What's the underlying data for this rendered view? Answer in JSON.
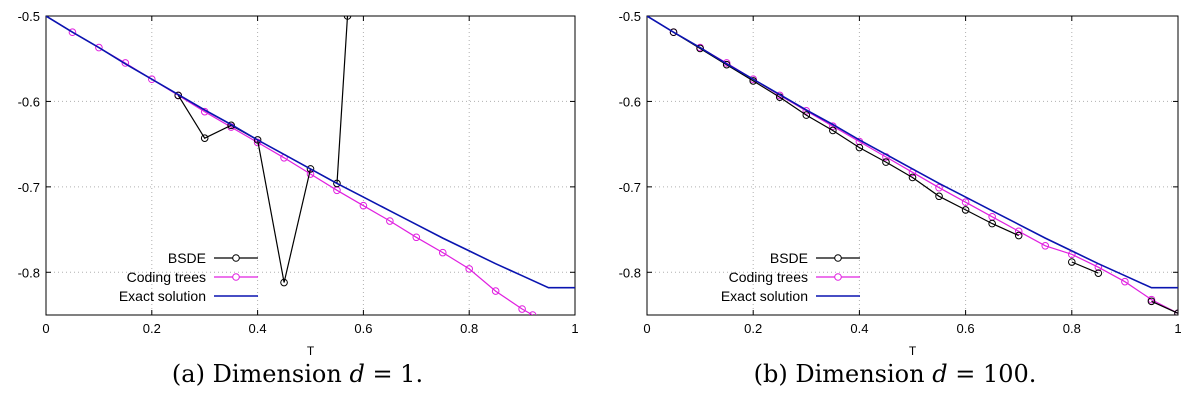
{
  "chart_data": [
    {
      "type": "line",
      "caption_prefix": "(a) Dimension ",
      "caption_var": "d",
      "caption_rest": " = 1.",
      "xlabel": "T",
      "ylabel": "",
      "xlim": [
        0,
        1
      ],
      "ylim": [
        -0.85,
        -0.5
      ],
      "xticks": [
        0,
        0.2,
        0.4,
        0.6,
        0.8,
        1
      ],
      "xtick_labels": [
        "0",
        "0.2",
        "0.4",
        "0.6",
        "0.8",
        "1"
      ],
      "yticks": [
        -0.5,
        -0.6,
        -0.7,
        -0.8
      ],
      "ytick_labels": [
        "-0.5",
        "-0.6",
        "-0.7",
        "-0.8"
      ],
      "grid": true,
      "legend_position": "bottom-left",
      "series": [
        {
          "name": "BSDE",
          "color": "#000000",
          "marker": "circle",
          "x": [
            0.25,
            0.3,
            0.35,
            0.4,
            0.45,
            0.5,
            0.55,
            0.57
          ],
          "y": [
            -0.593,
            -0.643,
            -0.628,
            -0.645,
            -0.812,
            -0.679,
            -0.696,
            -0.5
          ]
        },
        {
          "name": "Coding trees",
          "color": "#e020e0",
          "marker": "circle",
          "x": [
            0.0,
            0.05,
            0.1,
            0.15,
            0.2,
            0.25,
            0.3,
            0.35,
            0.4,
            0.45,
            0.5,
            0.55,
            0.6,
            0.65,
            0.7,
            0.75,
            0.8,
            0.85,
            0.9,
            0.92
          ],
          "y": [
            -0.5,
            -0.519,
            -0.537,
            -0.555,
            -0.574,
            -0.593,
            -0.612,
            -0.63,
            -0.648,
            -0.666,
            -0.685,
            -0.704,
            -0.722,
            -0.74,
            -0.759,
            -0.777,
            -0.796,
            -0.822,
            -0.843,
            -0.85
          ]
        },
        {
          "name": "Exact solution",
          "color": "#0a14b0",
          "marker": "none",
          "x": [
            0.0,
            0.05,
            0.1,
            0.15,
            0.2,
            0.25,
            0.3,
            0.35,
            0.4,
            0.45,
            0.5,
            0.55,
            0.6,
            0.65,
            0.7,
            0.75,
            0.8,
            0.85,
            0.9,
            0.95,
            1.0
          ],
          "y": [
            -0.5,
            -0.519,
            -0.537,
            -0.556,
            -0.574,
            -0.592,
            -0.61,
            -0.627,
            -0.645,
            -0.662,
            -0.679,
            -0.696,
            -0.712,
            -0.728,
            -0.744,
            -0.76,
            -0.775,
            -0.79,
            -0.804,
            -0.818,
            -0.818
          ]
        }
      ]
    },
    {
      "type": "line",
      "caption_prefix": "(b) Dimension ",
      "caption_var": "d",
      "caption_rest": " = 100.",
      "xlabel": "T",
      "ylabel": "",
      "xlim": [
        0,
        1
      ],
      "ylim": [
        -0.85,
        -0.5
      ],
      "xticks": [
        0,
        0.2,
        0.4,
        0.6,
        0.8,
        1
      ],
      "xtick_labels": [
        "0",
        "0.2",
        "0.4",
        "0.6",
        "0.8",
        "1"
      ],
      "yticks": [
        -0.5,
        -0.6,
        -0.7,
        -0.8
      ],
      "ytick_labels": [
        "-0.5",
        "-0.6",
        "-0.7",
        "-0.8"
      ],
      "grid": true,
      "legend_position": "bottom-left",
      "series": [
        {
          "name": "BSDE",
          "color": "#000000",
          "marker": "circle",
          "segments": [
            {
              "x": [
                0.05,
                0.1,
                0.15,
                0.2,
                0.25,
                0.3,
                0.35,
                0.4,
                0.45,
                0.5,
                0.55,
                0.6,
                0.65,
                0.7
              ],
              "y": [
                -0.519,
                -0.538,
                -0.557,
                -0.576,
                -0.595,
                -0.616,
                -0.634,
                -0.654,
                -0.671,
                -0.689,
                -0.711,
                -0.727,
                -0.743,
                -0.757
              ]
            },
            {
              "x": [
                0.8,
                0.85
              ],
              "y": [
                -0.788,
                -0.801
              ]
            },
            {
              "x": [
                0.95,
                1.0
              ],
              "y": [
                -0.834,
                -0.848
              ]
            }
          ]
        },
        {
          "name": "Coding trees",
          "color": "#e020e0",
          "marker": "circle",
          "x": [
            0.0,
            0.05,
            0.1,
            0.15,
            0.2,
            0.25,
            0.3,
            0.35,
            0.4,
            0.45,
            0.5,
            0.55,
            0.6,
            0.65,
            0.7,
            0.75,
            0.8,
            0.85,
            0.9,
            0.95,
            1.0
          ],
          "y": [
            -0.5,
            -0.519,
            -0.537,
            -0.555,
            -0.574,
            -0.593,
            -0.611,
            -0.629,
            -0.647,
            -0.665,
            -0.683,
            -0.701,
            -0.718,
            -0.735,
            -0.752,
            -0.769,
            -0.779,
            -0.794,
            -0.811,
            -0.832,
            -0.848
          ]
        },
        {
          "name": "Exact solution",
          "color": "#0a14b0",
          "marker": "none",
          "x": [
            0.0,
            0.05,
            0.1,
            0.15,
            0.2,
            0.25,
            0.3,
            0.35,
            0.4,
            0.45,
            0.5,
            0.55,
            0.6,
            0.65,
            0.7,
            0.75,
            0.8,
            0.85,
            0.9,
            0.95,
            1.0
          ],
          "y": [
            -0.5,
            -0.519,
            -0.537,
            -0.556,
            -0.574,
            -0.592,
            -0.61,
            -0.627,
            -0.645,
            -0.662,
            -0.679,
            -0.696,
            -0.712,
            -0.728,
            -0.744,
            -0.76,
            -0.775,
            -0.79,
            -0.804,
            -0.818,
            -0.818
          ]
        }
      ]
    }
  ]
}
